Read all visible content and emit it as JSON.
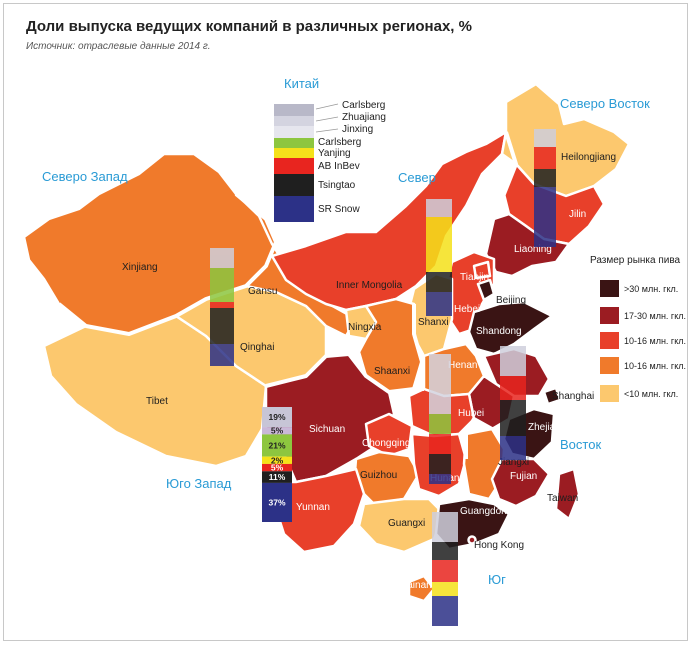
{
  "title": "Доли выпуска ведущих компаний в различных регионах, %",
  "subtitle": "Источник: отраслевые данные 2014 г.",
  "regions": {
    "china": "Китай",
    "northwest": "Северо Запад",
    "north": "Север",
    "northeast": "Северо Восток",
    "southwest": "Юго Запад",
    "east": "Восток",
    "south": "Юг"
  },
  "brands": [
    "Carlsberg",
    "Zhuajiang",
    "Jinxing",
    "Carlsberg",
    "Yanjing",
    "AB InBev",
    "Tsingtao",
    "SR Snow"
  ],
  "provinces": {
    "xinjiang": "Xinjiang",
    "tibet": "Tibet",
    "qinghai": "Qinghai",
    "gansu": "Gansu",
    "inner_mongolia": "Inner Mongolia",
    "ningxia": "Ningxia",
    "shaanxi": "Shaanxi",
    "shanxi": "Shanxi",
    "hebei": "Hebei",
    "tianjin": "Tianjin",
    "beijing": "Beijing",
    "shandong": "Shandong",
    "henan": "Henan",
    "hubei": "Hubei",
    "sichuan": "Sichuan",
    "chongqing": "Chongqing",
    "guizhou": "Guizhou",
    "yunnan": "Yunnan",
    "hunan": "Hunan",
    "guangxi": "Guangxi",
    "guangdong": "Guangdong",
    "hong_kong": "Hong Kong",
    "hainan": "Hainan",
    "jiangxi": "Jiangxi",
    "fujian": "Fujian",
    "zhejiang": "Zhejiang",
    "shanghai": "Shanghai",
    "taiwan": "Taiwan",
    "heilongjiang": "Heilongjiang",
    "jilin": "Jilin",
    "liaoning": "Liaoning"
  },
  "legend": {
    "title": "Размер рынка пива",
    "items": [
      {
        "label": ">30 млн. гкл.",
        "color": "#3a1414"
      },
      {
        "label": "17-30 млн. гкл.",
        "color": "#9b1c22"
      },
      {
        "label": "10-16 млн. гкл.",
        "color": "#e8402a"
      },
      {
        "label": "10-16 млн. гкл.",
        "color": "#f07a2b"
      },
      {
        "label": "<10 млн. гкл.",
        "color": "#fcc86e"
      }
    ]
  },
  "southwest_bar": {
    "segments": [
      {
        "label": "19%",
        "value": 19,
        "color": "#c7c5d6"
      },
      {
        "label": "5%",
        "value": 5,
        "color": "#c9b8d8"
      },
      {
        "label": "21%",
        "value": 21,
        "color": "#8dc63f"
      },
      {
        "label": "2%",
        "value": 2,
        "color": "#f5e11a"
      },
      {
        "label": "5%",
        "value": 5,
        "color": "#e8251f"
      },
      {
        "label": "11%",
        "value": 11,
        "color": "#1f1f1f"
      },
      {
        "label": "37%",
        "value": 37,
        "color": "#2c3187"
      }
    ]
  }
}
